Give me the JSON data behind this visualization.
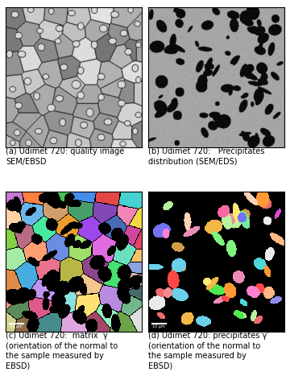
{
  "captions": [
    "(a) Udimet 720: quality image\nSEM/EBSD",
    "(b) Udimet 720:   Precipitates\ndistribution (SEM/EDS)",
    "(c) Udimet 720:  matrix  γ\n(orientation of the normal to\nthe sample measured by\nEBSD)",
    "(d) Udimet 720: precipitates γ’\n(orientation of the normal to\nthe sample measured by\nEBSD)"
  ],
  "bg_color": "#ffffff",
  "caption_fontsize": 7.0
}
